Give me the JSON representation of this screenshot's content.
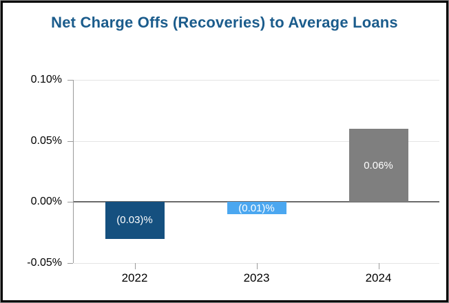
{
  "title": "Net Charge Offs (Recoveries) to Average Loans",
  "colors": {
    "title": "#1b5c8c",
    "bar_2022": "#15507f",
    "bar_2023": "#4ba7f0",
    "bar_2024": "#7f7f7f",
    "bar_label": "#ffffff",
    "gridline": "#e4e4e4",
    "zero_line": "#6a6a6a",
    "axis": "#9a9a9a",
    "frame_border": "#000000"
  },
  "chart_data": {
    "type": "bar",
    "title": "Net Charge Offs (Recoveries) to Average Loans",
    "categories": [
      "2022",
      "2023",
      "2024"
    ],
    "values": [
      -0.03,
      -0.01,
      0.06
    ],
    "bar_labels": [
      "(0.03)%",
      "(0.01)%",
      "0.06%"
    ],
    "bar_colors": [
      "#15507f",
      "#4ba7f0",
      "#7f7f7f"
    ],
    "bar_label_placement": "inside-center",
    "bar_label_color": "#ffffff",
    "xlabel": "",
    "ylabel": "",
    "unit": "%",
    "ylim": [
      -0.05,
      0.1
    ],
    "yticks": [
      {
        "value": 0.1,
        "label": "0.10%"
      },
      {
        "value": 0.05,
        "label": "0.05%"
      },
      {
        "value": 0.0,
        "label": "0.00%"
      },
      {
        "value": -0.05,
        "label": "-0.05%"
      }
    ],
    "grid": true,
    "legend_position": "none"
  }
}
